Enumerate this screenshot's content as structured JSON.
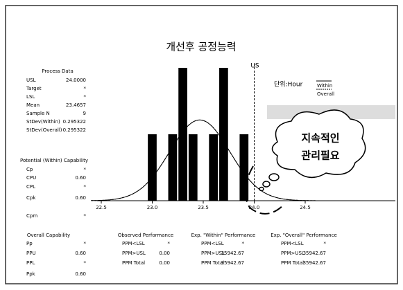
{
  "chart_data": {
    "type": "histogram",
    "title": "개선후 공정능력",
    "bins": [
      22.95,
      23.05,
      23.15,
      23.25,
      23.35,
      23.45,
      23.55,
      23.65,
      23.75,
      23.85,
      23.95
    ],
    "values": [
      1,
      0,
      1,
      2,
      1,
      0,
      1,
      2,
      0,
      1
    ],
    "color": "#000000",
    "xlim": [
      22.5,
      24.5
    ],
    "xticks": [
      22.5,
      {
        "value": 23,
        "label": "23.0"
      },
      23.5,
      {
        "value": 24,
        "label": "24.0"
      },
      24.5
    ],
    "ylim": [
      0,
      2
    ],
    "usl": 24,
    "usl_label": "US",
    "unit_label": "단위:Hour",
    "legend": [
      "Within",
      "Overall"
    ]
  },
  "process_data": {
    "title": "Process Data",
    "rows": [
      [
        "USL",
        "24.0000"
      ],
      [
        "Target",
        "*"
      ],
      [
        "LSL",
        "*"
      ],
      [
        "Mean",
        "23.4657"
      ],
      [
        "Sample N",
        "9"
      ],
      [
        "StDev(Within)",
        "0.295322"
      ],
      [
        "StDev(Overall)",
        "0.295322"
      ]
    ]
  },
  "potential": {
    "title": "Potential (Within) Capability",
    "rows": [
      [
        "Cp",
        "*"
      ],
      [
        "CPU",
        "0.60"
      ],
      [
        "CPL",
        "*"
      ],
      [
        "Cpk",
        "0.60"
      ],
      [
        "Cpm",
        "*"
      ]
    ]
  },
  "overall": {
    "title": "Overall Capability",
    "rows": [
      [
        "Pp",
        "*"
      ],
      [
        "PPU",
        "0.60"
      ],
      [
        "PPL",
        "*"
      ],
      [
        "Ppk",
        "0.60"
      ]
    ]
  },
  "observed": {
    "title": "Observed Performance",
    "rows": [
      [
        "PPM<LSL",
        "*"
      ],
      [
        "PPM>USL",
        "0.00"
      ],
      [
        "PPM Total",
        "0.00"
      ]
    ]
  },
  "exp_within": {
    "title": "Exp. \"Within\" Performance",
    "rows": [
      [
        "PPM<LSL",
        "*"
      ],
      [
        "PPM>USL",
        "35942.67"
      ],
      [
        "PPM Total",
        "35942.67"
      ]
    ]
  },
  "exp_overall": {
    "title": "Exp. \"Overall\" Performance",
    "rows": [
      [
        "PPM<LSL",
        "*"
      ],
      [
        "PPM>USL",
        "35942.67"
      ],
      [
        "PPM Total",
        "35942.67"
      ]
    ]
  },
  "callout": [
    "지속적인",
    "관리필요"
  ]
}
